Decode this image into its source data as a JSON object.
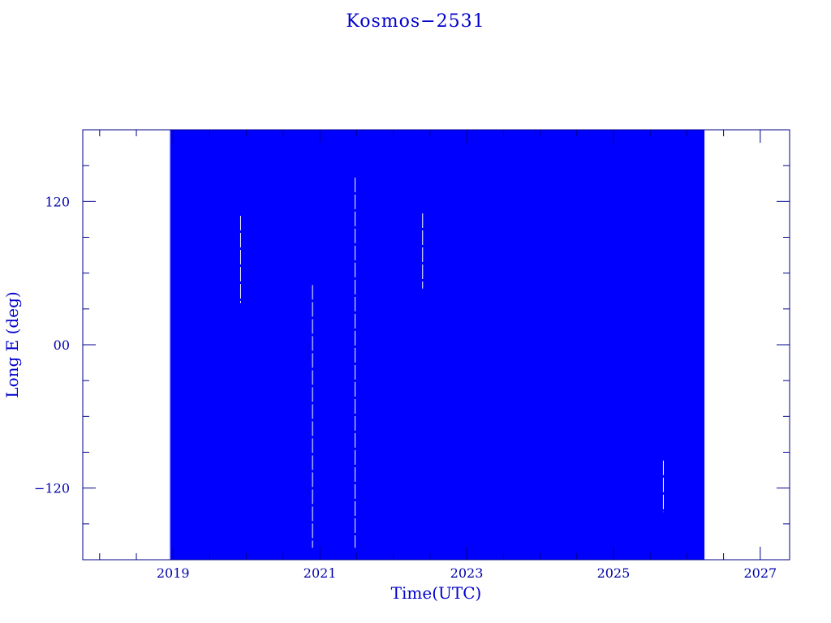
{
  "chart_data": {
    "type": "scatter",
    "title": "Kosmos−2531",
    "xlabel": "Time(UTC)",
    "ylabel": "Long E (deg)",
    "xlim": [
      2017.77,
      2027.4
    ],
    "ylim": [
      -180,
      180
    ],
    "x_ticks": [
      2019,
      2021,
      2023,
      2025,
      2027
    ],
    "x_tick_labels": [
      "2019",
      "2021",
      "2023",
      "2025",
      "2027"
    ],
    "y_ticks": [
      120,
      0,
      -120
    ],
    "y_tick_labels": [
      "120",
      "00",
      "−120"
    ],
    "grid": false,
    "legend": "none",
    "series": [
      {
        "x_start": 2018.95,
        "x_end": 2026.24,
        "y_min": -180,
        "y_max": 180,
        "gaps": [
          {
            "x": 2019.92,
            "y_min": 35,
            "y_max": 108
          },
          {
            "x": 2020.9,
            "y_min": -170,
            "y_max": 50
          },
          {
            "x": 2021.48,
            "y_min": -170,
            "y_max": 140
          },
          {
            "x": 2022.4,
            "y_min": 47,
            "y_max": 110
          },
          {
            "x": 2025.68,
            "y_min": -140,
            "y_max": -97
          }
        ]
      }
    ],
    "colors": {
      "data": "#0000ff",
      "axes": "#00008b",
      "text": "#0000cc"
    }
  }
}
